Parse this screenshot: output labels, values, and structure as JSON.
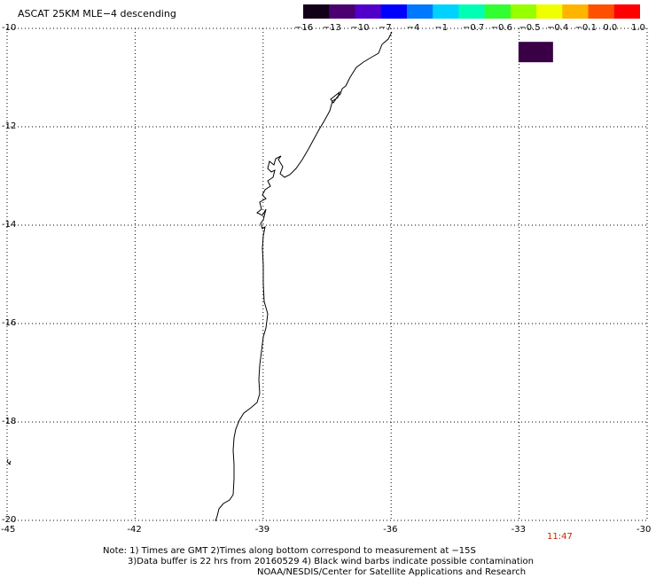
{
  "title": "ASCAT 25KM MLE−4 descending",
  "colorbar": {
    "labels": [
      "−16",
      "−13",
      "−10",
      "−7",
      "−4",
      "−1",
      "−0.7",
      "−0.6",
      "−0.5",
      "−0.4",
      "−0.1",
      "0.0",
      "1.0"
    ],
    "colors": [
      "#120018",
      "#4a0070",
      "#5000c8",
      "#0000ff",
      "#0078ff",
      "#00d2ff",
      "#00ffb4",
      "#32ff32",
      "#96ff00",
      "#f0ff00",
      "#ffb400",
      "#ff5000",
      "#ff0000"
    ]
  },
  "axes": {
    "lat_labels": [
      "-10",
      "-12",
      "-14",
      "-16",
      "-18",
      "-20"
    ],
    "lon_labels": [
      "-45",
      "-42",
      "-39",
      "-36",
      "-33",
      "-30"
    ],
    "lat_range": [
      -10,
      -20
    ],
    "lon_range": [
      -45,
      -30
    ],
    "grid": "dotted"
  },
  "measurement_cell": {
    "lon": -32.6,
    "lat": -10.4,
    "color": "#3a0046"
  },
  "time_label": "11:47",
  "notes": [
    "Note: 1) Times are GMT 2)Times along bottom correspond to measurement at −15S",
    "3)Data buffer is 22 hrs from 20160529 4) Black wind barbs indicate possible contamination",
    "NOAA/NESDIS/Center for Satellite Applications and Research"
  ]
}
